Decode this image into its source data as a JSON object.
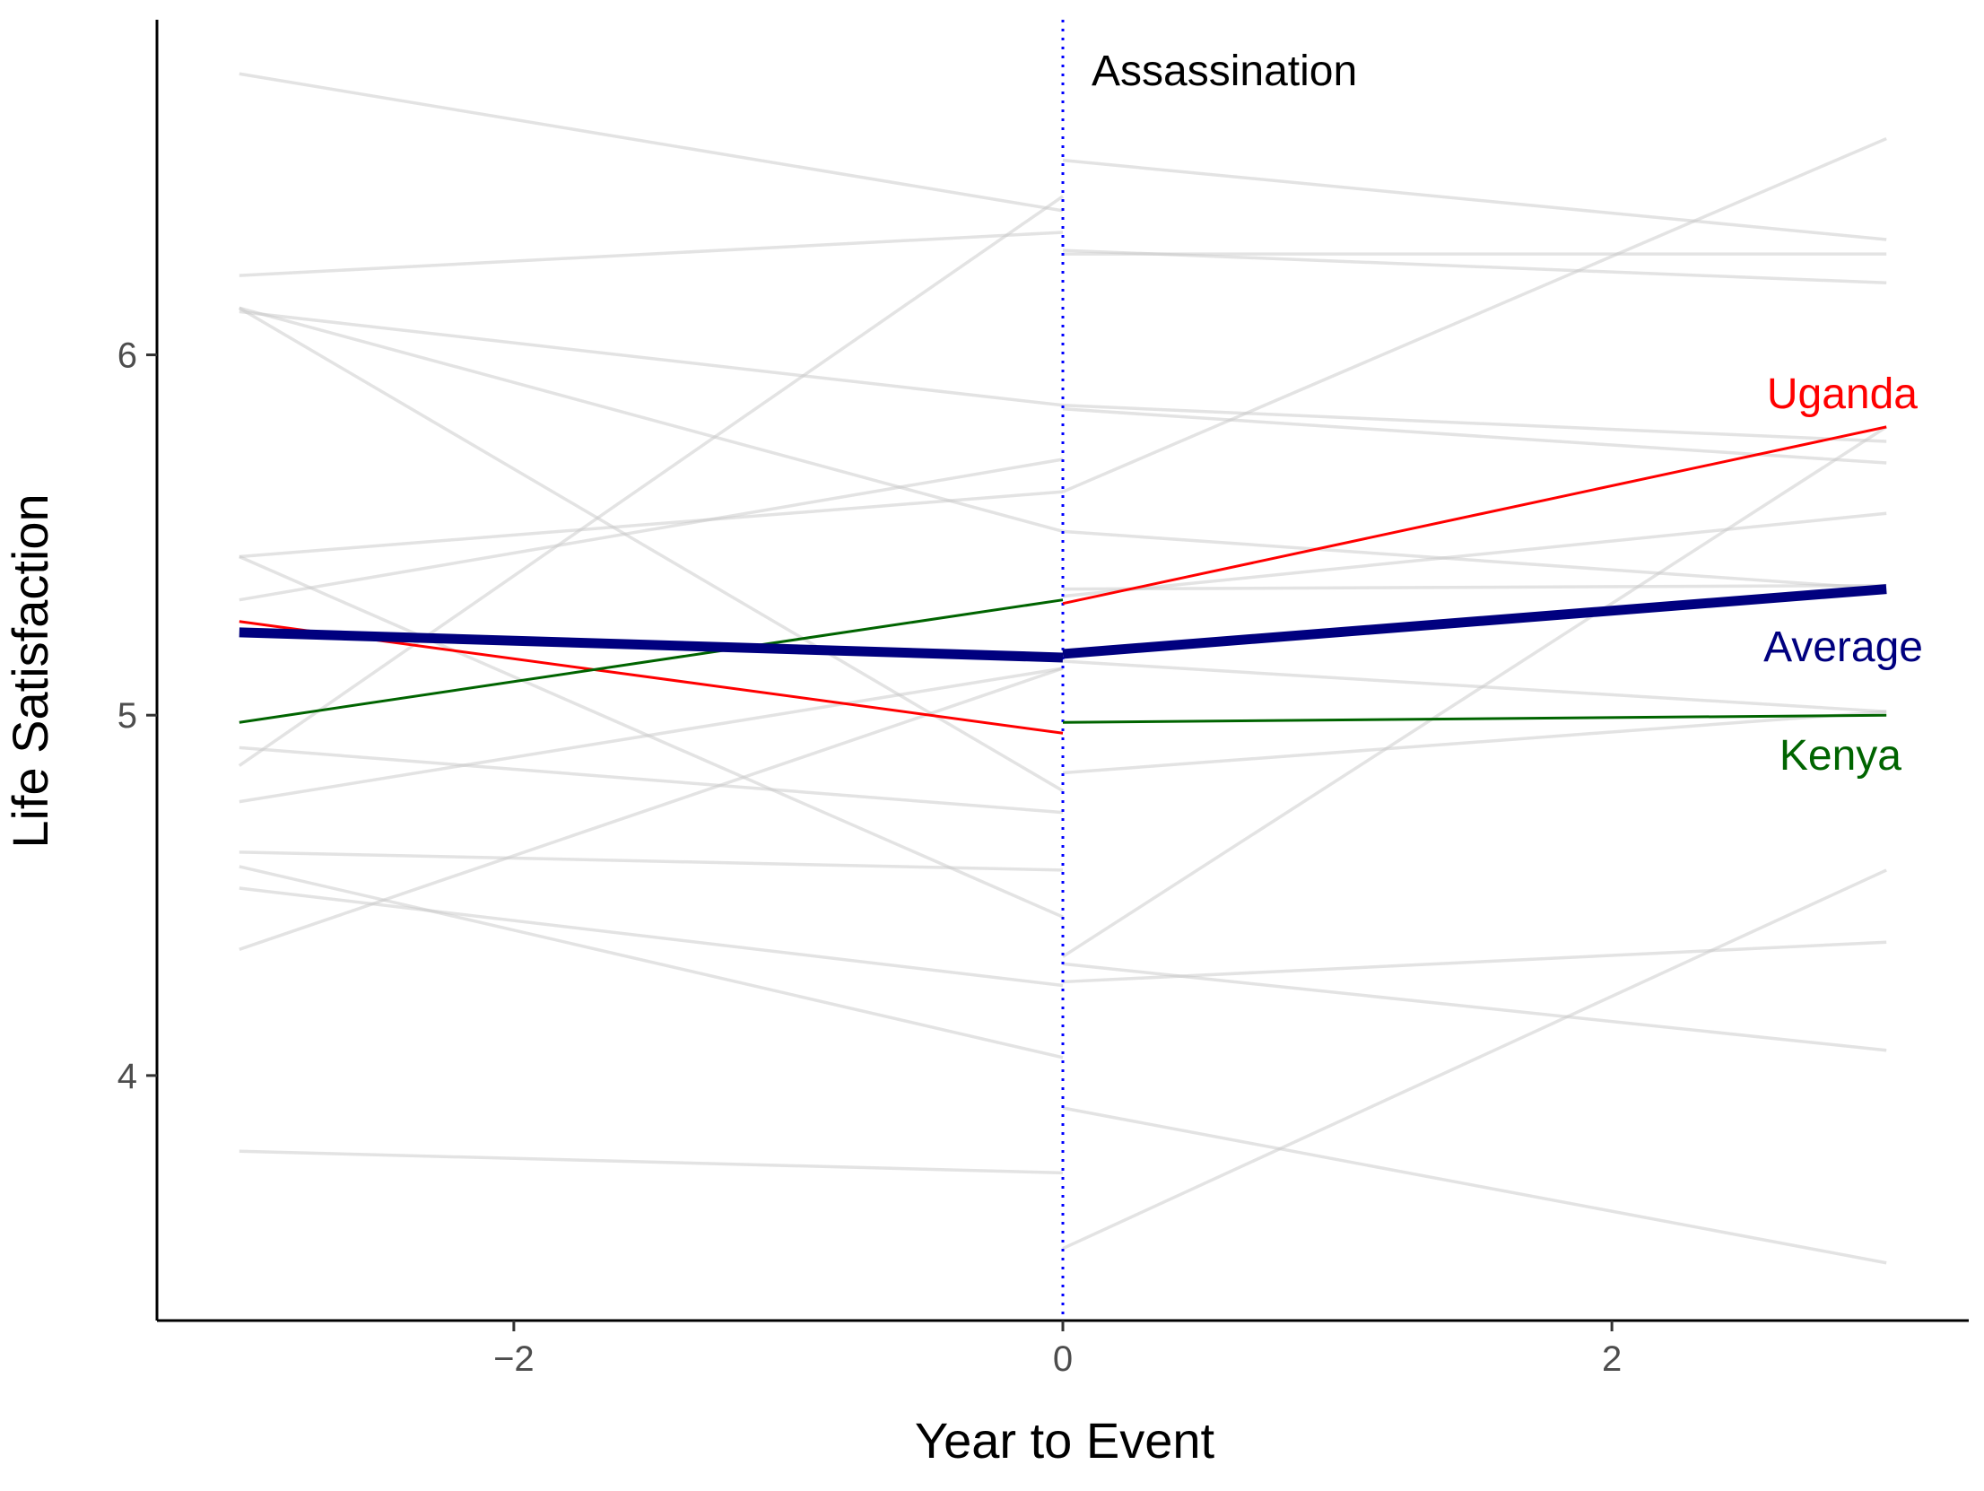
{
  "chart_data": {
    "type": "line",
    "xlabel": "Year to Event",
    "ylabel": "Life Satisfaction",
    "xlim": [
      -3.3,
      3.3
    ],
    "ylim": [
      3.32,
      6.93
    ],
    "xticks": [
      -2,
      0,
      2
    ],
    "xtick_labels": [
      "−2",
      "0",
      "2"
    ],
    "yticks": [
      4,
      5,
      6
    ],
    "ytick_labels": [
      "4",
      "5",
      "6"
    ],
    "grid": false,
    "event": {
      "x": 0,
      "label": "Assassination",
      "color": "#0000ff",
      "style": "dotted"
    },
    "background_series": [
      {
        "pre": [
          [
            -3,
            6.78
          ],
          [
            0,
            6.4
          ]
        ],
        "post": [
          [
            0,
            6.54
          ],
          [
            3,
            6.32
          ]
        ]
      },
      {
        "pre": [
          [
            -3,
            6.22
          ],
          [
            0,
            6.34
          ]
        ],
        "post": [
          [
            0,
            6.28
          ],
          [
            3,
            6.28
          ]
        ]
      },
      {
        "pre": [
          [
            -3,
            6.12
          ],
          [
            0,
            5.86
          ]
        ],
        "post": [
          [
            0,
            5.86
          ],
          [
            3,
            5.76
          ]
        ]
      },
      {
        "pre": [
          [
            -3,
            6.13
          ],
          [
            0,
            4.79
          ]
        ],
        "post": [
          [
            0,
            6.29
          ],
          [
            3,
            6.2
          ]
        ]
      },
      {
        "pre": [
          [
            -3,
            5.44
          ],
          [
            0,
            4.44
          ]
        ],
        "post": [
          [
            0,
            5.85
          ],
          [
            3,
            5.7
          ]
        ]
      },
      {
        "pre": [
          [
            -3,
            5.32
          ],
          [
            0,
            5.71
          ]
        ],
        "post": [
          [
            0,
            5.62
          ],
          [
            3,
            6.6
          ]
        ]
      },
      {
        "pre": [
          [
            -3,
            5.44
          ],
          [
            0,
            5.62
          ]
        ],
        "post": [
          [
            0,
            5.35
          ],
          [
            3,
            5.36
          ]
        ]
      },
      {
        "pre": [
          [
            -3,
            4.86
          ],
          [
            0,
            6.44
          ]
        ],
        "post": [
          [
            0,
            5.33
          ],
          [
            3,
            5.56
          ]
        ]
      },
      {
        "pre": [
          [
            -3,
            4.76
          ],
          [
            0,
            5.13
          ]
        ],
        "post": [
          [
            0,
            4.84
          ],
          [
            3,
            5.01
          ]
        ]
      },
      {
        "pre": [
          [
            -3,
            4.35
          ],
          [
            0,
            5.13
          ]
        ],
        "post": [
          [
            0,
            5.15
          ],
          [
            3,
            5.01
          ]
        ]
      },
      {
        "pre": [
          [
            -3,
            4.91
          ],
          [
            0,
            4.73
          ]
        ],
        "post": [
          [
            0,
            4.33
          ],
          [
            3,
            5.8
          ]
        ]
      },
      {
        "pre": [
          [
            -3,
            4.62
          ],
          [
            0,
            4.57
          ]
        ],
        "post": [
          [
            0,
            4.31
          ],
          [
            3,
            4.07
          ]
        ]
      },
      {
        "pre": [
          [
            -3,
            4.58
          ],
          [
            0,
            4.05
          ]
        ],
        "post": [
          [
            0,
            4.26
          ],
          [
            3,
            4.37
          ]
        ]
      },
      {
        "pre": [
          [
            -3,
            4.52
          ],
          [
            0,
            4.25
          ]
        ],
        "post": [
          [
            0,
            3.91
          ],
          [
            3,
            3.48
          ]
        ]
      },
      {
        "pre": [
          [
            -3,
            3.79
          ],
          [
            0,
            3.73
          ]
        ],
        "post": [
          [
            0,
            3.52
          ],
          [
            3,
            4.57
          ]
        ]
      },
      {
        "pre": [
          [
            -3,
            6.13
          ],
          [
            0,
            5.51
          ]
        ],
        "post": [
          [
            0,
            5.51
          ],
          [
            3,
            5.35
          ]
        ]
      }
    ],
    "series": [
      {
        "name": "Uganda",
        "color": "#ff0000",
        "pre": [
          [
            -3,
            5.26
          ],
          [
            0,
            4.95
          ]
        ],
        "post": [
          [
            0,
            5.31
          ],
          [
            3,
            5.8
          ]
        ]
      },
      {
        "name": "Kenya",
        "color": "#006400",
        "pre": [
          [
            -3,
            4.98
          ],
          [
            0,
            5.32
          ]
        ],
        "post": [
          [
            0,
            4.98
          ],
          [
            3,
            5.0
          ]
        ]
      },
      {
        "name": "Average",
        "color": "#00007f",
        "pre": [
          [
            -3,
            5.23
          ],
          [
            0,
            5.16
          ]
        ],
        "post": [
          [
            0,
            5.17
          ],
          [
            3,
            5.35
          ]
        ]
      }
    ],
    "background_color": "#c8c8c8"
  }
}
